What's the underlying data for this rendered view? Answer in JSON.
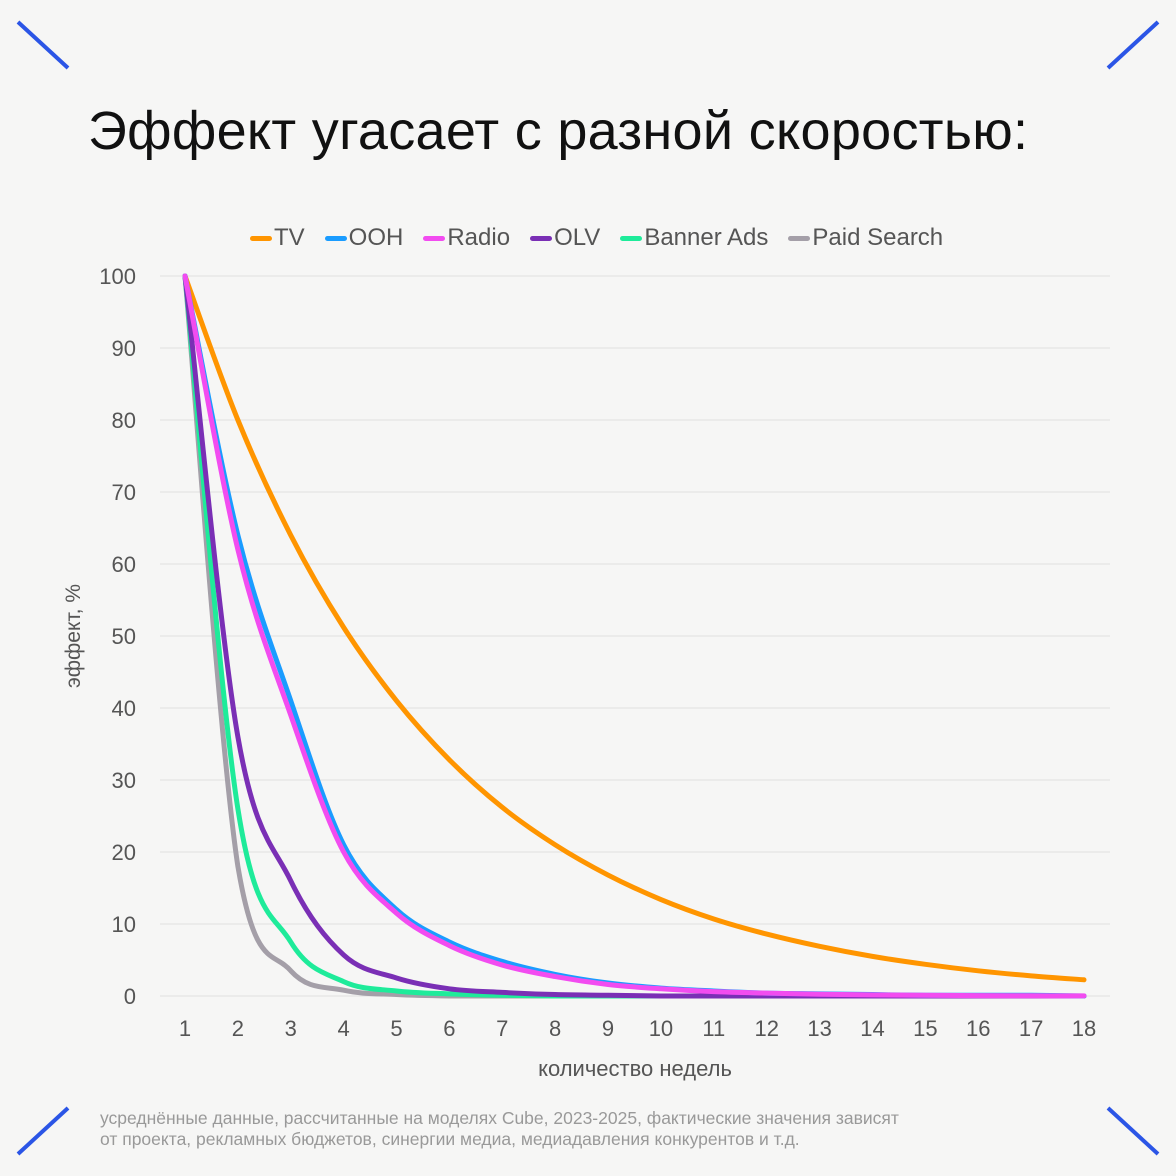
{
  "title": "Эффект угасает с разной скоростью:",
  "footnote": {
    "line1": "усреднённые данные, рассчитанные на моделях Cube, 2023-2025, фактические значения зависят",
    "line2": "от проекта, рекламных бюджетов, синергии медиа, медиадавления конкурентов и т.д."
  },
  "accent_color": "#2b55e6",
  "chart_data": {
    "type": "line",
    "title": "Эффект угасает с разной скоростью:",
    "xlabel": "количество недель",
    "ylabel": "эффект, %",
    "x": [
      1,
      2,
      3,
      4,
      5,
      6,
      7,
      8,
      9,
      10,
      11,
      12,
      13,
      14,
      15,
      16,
      17,
      18
    ],
    "xlim": [
      1,
      18
    ],
    "ylim": [
      0,
      100
    ],
    "yticks": [
      0,
      10,
      20,
      30,
      40,
      50,
      60,
      70,
      80,
      90,
      100
    ],
    "grid": true,
    "legend_position": "top-center",
    "series": [
      {
        "name": "TV",
        "color": "#ff9500",
        "values": [
          100,
          80,
          64,
          51.2,
          41,
          32.8,
          26.2,
          21,
          16.8,
          13.4,
          10.7,
          8.6,
          6.9,
          5.5,
          4.4,
          3.5,
          2.8,
          2.25
        ]
      },
      {
        "name": "OOH",
        "color": "#1a9cff",
        "values": [
          100,
          64,
          41,
          21,
          12,
          7.5,
          4.8,
          3,
          1.8,
          1.1,
          0.7,
          0.4,
          0.3,
          0.2,
          0.1,
          0.1,
          0.1,
          0
        ]
      },
      {
        "name": "Radio",
        "color": "#f24cf0",
        "values": [
          100,
          62,
          39,
          20,
          11.5,
          7,
          4.3,
          2.7,
          1.6,
          1.0,
          0.6,
          0.4,
          0.25,
          0.15,
          0.1,
          0.05,
          0.03,
          0.02
        ]
      },
      {
        "name": "OLV",
        "color": "#7a2fb5",
        "values": [
          100,
          36,
          16,
          5.7,
          2.5,
          1.0,
          0.5,
          0.2,
          0.1,
          0,
          0,
          0,
          0,
          0,
          0,
          0,
          0,
          0
        ]
      },
      {
        "name": "Banner Ads",
        "color": "#1eeb9a",
        "values": [
          100,
          26,
          7.5,
          2,
          0.7,
          0.3,
          0.1,
          0,
          0,
          0,
          0,
          0,
          0,
          0,
          0,
          0,
          0,
          0
        ]
      },
      {
        "name": "Paid Search",
        "color": "#a49fa8",
        "values": [
          100,
          18,
          3.5,
          0.8,
          0.2,
          0,
          0,
          0,
          0,
          0,
          0,
          0,
          0,
          0,
          0,
          0,
          0,
          0
        ]
      }
    ]
  }
}
